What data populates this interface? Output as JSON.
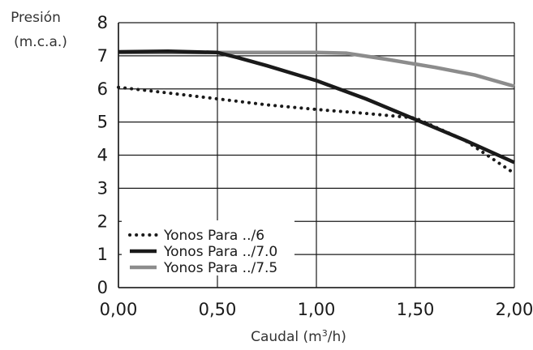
{
  "chart_data": {
    "type": "line",
    "title": "",
    "ylabel_line1": "Presión",
    "ylabel_line2": "(m.c.a.)",
    "xlabel": "Caudal (m",
    "xlabel_sup": "3",
    "xlabel_end": "/h)",
    "xlim": [
      0,
      2
    ],
    "ylim": [
      0,
      8
    ],
    "xticks": [
      0,
      0.5,
      1,
      1.5,
      2
    ],
    "xtick_labels": [
      "0,00",
      "0,50",
      "1,00",
      "1,50",
      "2,00"
    ],
    "yticks": [
      0,
      1,
      2,
      3,
      4,
      5,
      6,
      7,
      8
    ],
    "ytick_labels": [
      "0",
      "1",
      "2",
      "3",
      "4",
      "5",
      "6",
      "7",
      "8"
    ],
    "grid": true,
    "legend_position": "bottom-left",
    "series": [
      {
        "name": "Yonos Para ../6",
        "style": "dotted",
        "color": "#1a1a1a",
        "x": [
          0,
          0.25,
          0.5,
          0.75,
          1.0,
          1.25,
          1.5,
          1.75,
          2.0
        ],
        "y": [
          6.05,
          5.88,
          5.7,
          5.52,
          5.38,
          5.26,
          5.12,
          4.45,
          3.45
        ]
      },
      {
        "name": "Yonos Para ../7.0",
        "style": "solid",
        "color": "#1a1a1a",
        "x": [
          0,
          0.25,
          0.5,
          0.6,
          0.75,
          1.0,
          1.25,
          1.5,
          1.75,
          2.0
        ],
        "y": [
          7.12,
          7.14,
          7.1,
          6.95,
          6.7,
          6.25,
          5.7,
          5.08,
          4.45,
          3.78
        ]
      },
      {
        "name": "Yonos Para ../7.5",
        "style": "solid",
        "color": "#8c8c8c",
        "x": [
          0,
          0.5,
          0.75,
          1.0,
          1.15,
          1.35,
          1.6,
          1.8,
          2.0
        ],
        "y": [
          7.1,
          7.1,
          7.1,
          7.1,
          7.08,
          6.9,
          6.65,
          6.42,
          6.08
        ]
      }
    ]
  }
}
